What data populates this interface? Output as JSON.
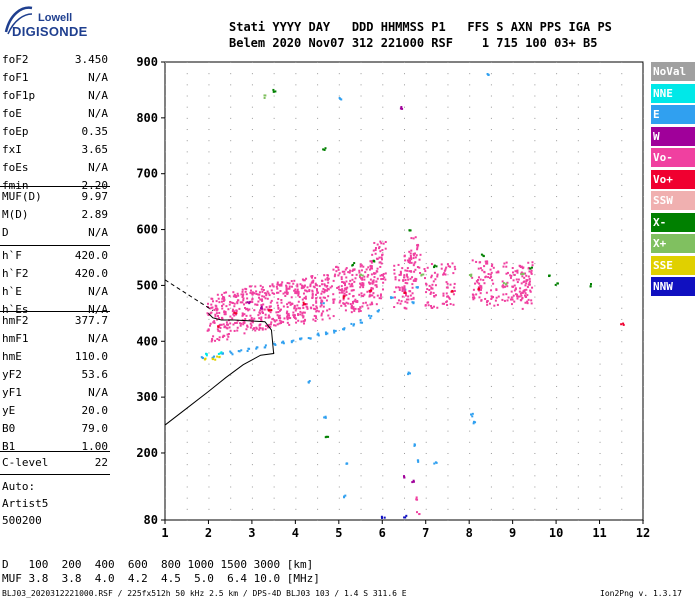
{
  "logo": {
    "line1": "Lowell",
    "line2": "DIGISONDE"
  },
  "header": {
    "line1": "Stati YYYY DAY   DDD HHMMSS P1   FFS S AXN PPS IGA PS",
    "line2": "Belem 2020 Nov07 312 221000 RSF    1 715 100 03+ B5"
  },
  "params": [
    {
      "name": "foF2",
      "value": "3.450"
    },
    {
      "name": "foF1",
      "value": "N/A"
    },
    {
      "name": "foF1p",
      "value": "N/A"
    },
    {
      "name": "foE",
      "value": "N/A"
    },
    {
      "name": "foEp",
      "value": "0.35"
    },
    {
      "name": "fxI",
      "value": "3.65"
    },
    {
      "name": "foEs",
      "value": "N/A"
    },
    {
      "name": "fmin",
      "value": "2.20"
    },
    {
      "name": "MUF(D)",
      "value": "9.97"
    },
    {
      "name": "M(D)",
      "value": "2.89"
    },
    {
      "name": "D",
      "value": "N/A"
    },
    {
      "name": "h`F",
      "value": "420.0"
    },
    {
      "name": "h`F2",
      "value": "420.0"
    },
    {
      "name": "h`E",
      "value": "N/A"
    },
    {
      "name": "h`Es",
      "value": "N/A"
    },
    {
      "name": "hmF2",
      "value": "377.7"
    },
    {
      "name": "hmF1",
      "value": "N/A"
    },
    {
      "name": "hmE",
      "value": "110.0"
    },
    {
      "name": "yF2",
      "value": "53.6"
    },
    {
      "name": "yF1",
      "value": "N/A"
    },
    {
      "name": "yE",
      "value": "20.0"
    },
    {
      "name": "B0",
      "value": "79.0"
    },
    {
      "name": "B1",
      "value": "1.00"
    },
    {
      "name": "C-level",
      "value": "22"
    }
  ],
  "auto": {
    "line1": "Auto:",
    "line2": "Artist5",
    "line3": "500200"
  },
  "legend": [
    {
      "label": "NoVal",
      "color": "#a0a0a0"
    },
    {
      "label": "NNE",
      "color": "#00e8e8"
    },
    {
      "label": "E",
      "color": "#30a0f0"
    },
    {
      "label": "W",
      "color": "#a0009a"
    },
    {
      "label": "Vo-",
      "color": "#f040a0"
    },
    {
      "label": "Vo+",
      "color": "#f00030"
    },
    {
      "label": "SSW",
      "color": "#f0b0b0"
    },
    {
      "label": "X-",
      "color": "#008000"
    },
    {
      "label": "X+",
      "color": "#80c060"
    },
    {
      "label": "SSE",
      "color": "#e0d000"
    },
    {
      "label": "NNW",
      "color": "#1010c0"
    }
  ],
  "footer": {
    "d_label": "D",
    "d_values": "100  200  400  600  800 1000 1500 3000 [km]",
    "muf_label": "MUF",
    "muf_values": "3.8  3.8  4.0  4.2  4.5  5.0  6.4 10.0 [MHz]",
    "file_info": "BLJ03_2020312221000.RSF / 225fx512h 50 kHz 2.5 km / DPS-4D BLJ03 103 / 1.4 S 311.6 E",
    "version": "Ion2Png v. 1.3.17"
  },
  "chart_data": {
    "type": "scatter",
    "title": "",
    "xlabel": "",
    "ylabel": "",
    "xlim": [
      1,
      12
    ],
    "ylim": [
      80,
      900
    ],
    "x_ticks": [
      1,
      2,
      3,
      4,
      5,
      6,
      7,
      8,
      9,
      10,
      11,
      12
    ],
    "y_ticks": [
      80,
      200,
      300,
      400,
      500,
      600,
      700,
      800,
      900
    ],
    "grid": true,
    "legend_position": "right",
    "series": [
      {
        "name": "E",
        "values": [
          [
            1.85,
            372
          ],
          [
            2.1,
            374
          ],
          [
            2.3,
            378
          ],
          [
            2.5,
            381
          ],
          [
            2.7,
            384
          ],
          [
            2.9,
            387
          ],
          [
            3.1,
            390
          ],
          [
            3.3,
            393
          ],
          [
            3.5,
            396
          ],
          [
            3.7,
            399
          ],
          [
            3.9,
            402
          ],
          [
            4.1,
            405
          ],
          [
            4.3,
            409
          ],
          [
            4.5,
            413
          ],
          [
            4.7,
            417
          ],
          [
            4.9,
            420
          ],
          [
            5.1,
            425
          ],
          [
            5.3,
            431
          ],
          [
            5.5,
            437
          ],
          [
            5.7,
            445
          ],
          [
            5.9,
            455
          ],
          [
            6.2,
            478
          ],
          [
            6.5,
            492
          ],
          [
            6.8,
            500
          ],
          [
            6.6,
            345
          ],
          [
            6.75,
            215
          ],
          [
            6.8,
            188
          ],
          [
            7.2,
            185
          ],
          [
            5.1,
            125
          ],
          [
            5.15,
            185
          ],
          [
            5.0,
            835
          ],
          [
            8.4,
            880
          ],
          [
            8.05,
            270
          ],
          [
            8.1,
            255
          ],
          [
            4.6,
            470
          ],
          [
            4.3,
            330
          ],
          [
            4.65,
            265
          ],
          [
            6.7,
            470
          ]
        ]
      },
      {
        "name": "Vo-",
        "values": [
          [
            2.1,
            440
          ],
          [
            2.3,
            445
          ],
          [
            2.5,
            450
          ],
          [
            2.7,
            455
          ],
          [
            2.9,
            460
          ],
          [
            3.1,
            460
          ],
          [
            3.3,
            462
          ],
          [
            3.5,
            465
          ],
          [
            3.7,
            468
          ],
          [
            3.9,
            470
          ],
          [
            4.1,
            472
          ],
          [
            4.3,
            475
          ],
          [
            4.5,
            480
          ],
          [
            4.7,
            482
          ],
          [
            5.0,
            495
          ],
          [
            5.2,
            492
          ],
          [
            5.4,
            495
          ],
          [
            5.6,
            500
          ],
          [
            5.85,
            505
          ],
          [
            5.9,
            540
          ],
          [
            6.4,
            500
          ],
          [
            6.6,
            515
          ],
          [
            6.7,
            550
          ],
          [
            7.1,
            500
          ],
          [
            7.5,
            505
          ],
          [
            8.2,
            510
          ],
          [
            8.5,
            505
          ],
          [
            8.9,
            505
          ],
          [
            9.2,
            500
          ],
          [
            9.3,
            508
          ],
          [
            6.75,
            120
          ],
          [
            6.8,
            95
          ]
        ]
      },
      {
        "name": "Vo+",
        "values": [
          [
            2.2,
            430
          ],
          [
            2.6,
            452
          ],
          [
            3.4,
            458
          ],
          [
            4.2,
            470
          ],
          [
            5.1,
            480
          ],
          [
            5.7,
            490
          ],
          [
            6.5,
            490
          ],
          [
            7.6,
            492
          ],
          [
            8.2,
            495
          ],
          [
            11.5,
            432
          ]
        ]
      },
      {
        "name": "W",
        "values": [
          [
            6.4,
            820
          ],
          [
            6.5,
            160
          ],
          [
            6.7,
            150
          ],
          [
            3.2,
            462
          ],
          [
            2.9,
            470
          ]
        ]
      },
      {
        "name": "X-",
        "values": [
          [
            3.5,
            850
          ],
          [
            4.65,
            745
          ],
          [
            4.7,
            230
          ],
          [
            5.3,
            540
          ],
          [
            5.8,
            545
          ],
          [
            6.6,
            600
          ],
          [
            7.2,
            535
          ],
          [
            8.3,
            555
          ],
          [
            9.4,
            532
          ],
          [
            10.8,
            502
          ],
          [
            9.8,
            520
          ],
          [
            10.0,
            505
          ]
        ]
      },
      {
        "name": "X+",
        "values": [
          [
            3.3,
            840
          ],
          [
            5.5,
            520
          ],
          [
            6.9,
            520
          ],
          [
            8.0,
            520
          ],
          [
            8.8,
            505
          ],
          [
            9.2,
            520
          ]
        ]
      },
      {
        "name": "SSE",
        "values": [
          [
            1.9,
            370
          ],
          [
            2.1,
            368
          ],
          [
            2.2,
            375
          ]
        ]
      },
      {
        "name": "NNE",
        "values": [
          [
            1.95,
            378
          ],
          [
            2.25,
            380
          ]
        ]
      },
      {
        "name": "NNW",
        "values": [
          [
            6.0,
            85
          ],
          [
            6.5,
            88
          ]
        ]
      }
    ],
    "lines": [
      {
        "name": "profile",
        "color": "#000000",
        "points": [
          [
            1.0,
            250
          ],
          [
            1.5,
            280
          ],
          [
            2.0,
            310
          ],
          [
            2.4,
            335
          ],
          [
            2.8,
            358
          ],
          [
            3.2,
            375
          ],
          [
            3.5,
            378
          ],
          [
            3.45,
            420
          ],
          [
            3.3,
            435
          ],
          [
            2.6,
            438
          ],
          [
            2.3,
            438
          ],
          [
            2.1,
            442
          ],
          [
            2.0,
            450
          ]
        ]
      },
      {
        "name": "profile-extrapolated",
        "color": "#000000",
        "dashed": true,
        "points": [
          [
            1.0,
            510
          ],
          [
            1.4,
            490
          ],
          [
            1.8,
            470
          ],
          [
            2.1,
            455
          ]
        ]
      }
    ]
  }
}
